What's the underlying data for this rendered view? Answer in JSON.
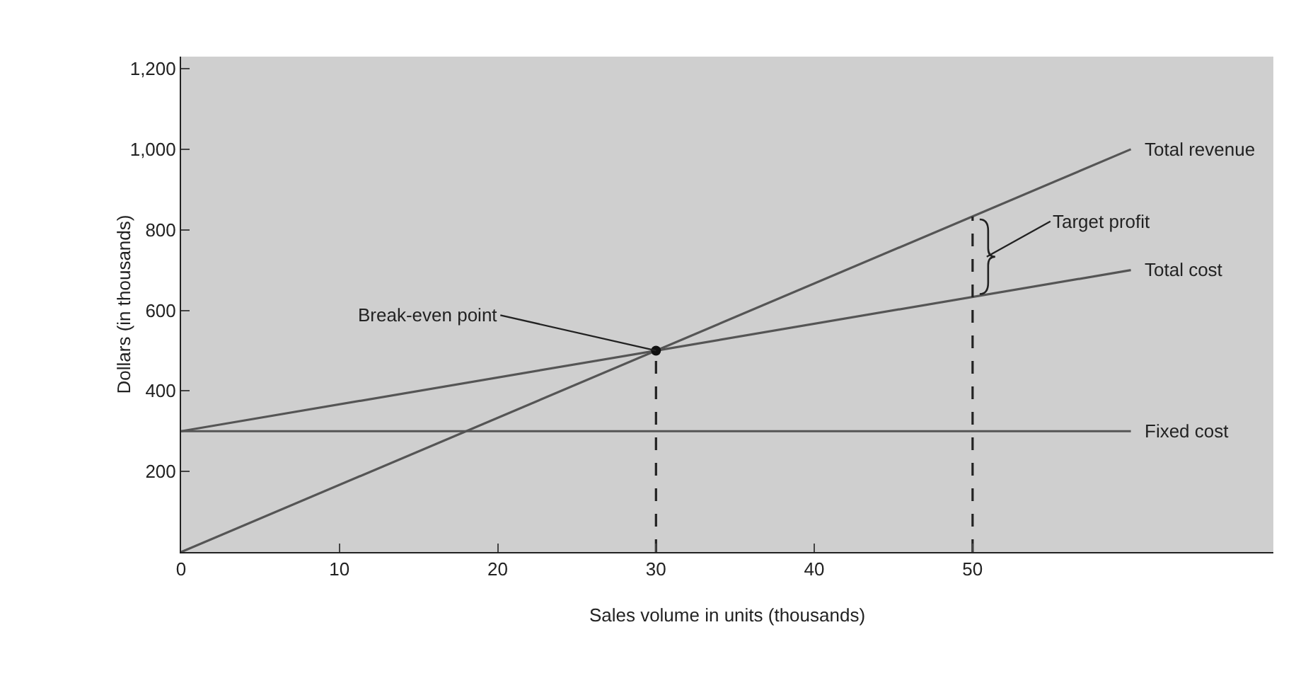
{
  "chart_data": {
    "type": "line",
    "xlabel": "Sales volume in units (thousands)",
    "ylabel": "Dollars (in thousands)",
    "xlim": [
      0,
      69
    ],
    "ylim": [
      0,
      1230
    ],
    "xticks": [
      0,
      10,
      20,
      30,
      40,
      50
    ],
    "yticks": [
      200,
      400,
      600,
      800,
      {
        "value": 1000,
        "label": "1,000"
      },
      {
        "value": 1200,
        "label": "1,200"
      }
    ],
    "grid": false,
    "series": [
      {
        "name": "Total revenue",
        "color": "#555555",
        "x": [
          0,
          60
        ],
        "values": [
          0,
          1000
        ]
      },
      {
        "name": "Total cost",
        "color": "#555555",
        "x": [
          0,
          60
        ],
        "values": [
          300,
          700
        ]
      },
      {
        "name": "Fixed cost",
        "color": "#555555",
        "x": [
          0,
          60
        ],
        "values": [
          300,
          300
        ]
      },
      {
        "type": "line",
        "line_style": "dashed",
        "color": "#222222",
        "x": [
          30,
          30
        ],
        "values": [
          0,
          500
        ]
      },
      {
        "type": "line",
        "line_style": "dashed",
        "color": "#222222",
        "x": [
          50,
          50
        ],
        "values": [
          0,
          833
        ]
      },
      {
        "type": "scatter",
        "marker": "circle",
        "color": "#111111",
        "x": [
          30
        ],
        "values": [
          500
        ]
      }
    ],
    "annotations": [
      {
        "text": "Break-even point",
        "x": 30,
        "y": 500
      },
      "Target profit"
    ]
  }
}
